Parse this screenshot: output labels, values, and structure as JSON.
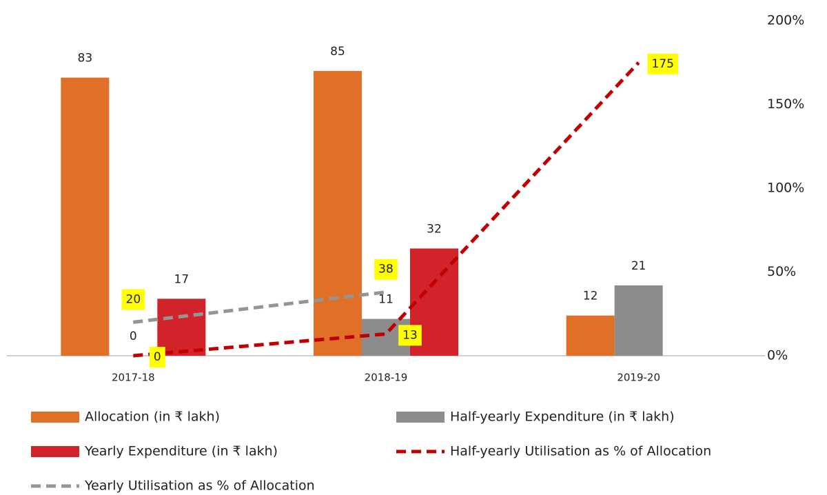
{
  "chart_data": {
    "type": "bar",
    "categories": [
      "2017-18",
      "2018-19",
      "2019-20"
    ],
    "ylim": [
      0,
      100
    ],
    "y2lim": [
      0,
      200
    ],
    "y2ticks": [
      {
        "value": 0,
        "label": "0%"
      },
      {
        "value": 50,
        "label": "50%"
      },
      {
        "value": 100,
        "label": "100%"
      },
      {
        "value": 150,
        "label": "150%"
      },
      {
        "value": 200,
        "label": "200%"
      }
    ],
    "series": [
      {
        "name": "Allocation (in ₹ lakh)",
        "type": "bar",
        "color": "#e07028",
        "values": [
          83,
          85,
          12
        ]
      },
      {
        "name": "Half-yearly Expenditure (in ₹ lakh)",
        "type": "bar",
        "color": "#8c8c8c",
        "values": [
          0,
          11,
          21
        ]
      },
      {
        "name": "Yearly Expenditure (in ₹ lakh)",
        "type": "bar",
        "color": "#d2232a",
        "values": [
          17,
          32,
          null
        ]
      },
      {
        "name": "Half-yearly Utilisation as % of Allocation",
        "type": "line",
        "axis": "y2",
        "color": "#c00000",
        "values": [
          0,
          13,
          175
        ]
      },
      {
        "name": "Yearly Utilisation as % of Allocation",
        "type": "line",
        "axis": "y2",
        "color": "#959595",
        "values": [
          20,
          38,
          null
        ]
      }
    ]
  }
}
